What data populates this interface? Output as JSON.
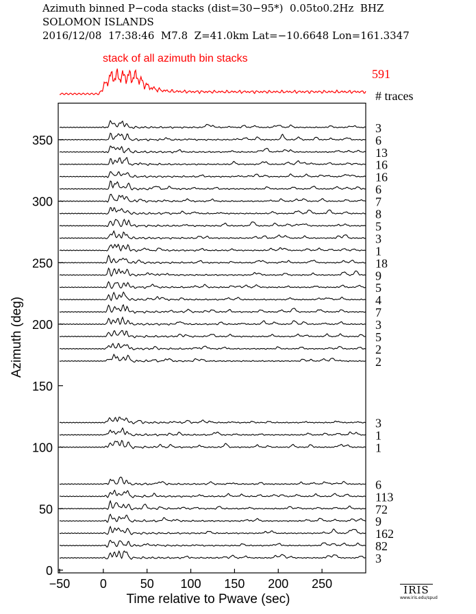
{
  "header": {
    "line1": "Azimuth binned P−coda stacks (dist=30−95*)  0.05to0.2Hz  BHZ",
    "line2": "SOLOMON ISLANDS",
    "line3": "2016/12/08  17:38:46  M7.8  Z=41.0km Lat=−10.6648 Lon=161.3347"
  },
  "logo": {
    "mark": "IRIS",
    "url": "www.iris.edu/spud"
  },
  "colors": {
    "trace": "#000000",
    "stack": "#ff0000",
    "axis": "#000000"
  },
  "chart_data": {
    "type": "line",
    "xlabel": "Time relative to Pwave (sec)",
    "ylabel": "Azimuth (deg)",
    "xlim": [
      -50,
      300
    ],
    "ylim": [
      0,
      380
    ],
    "xticks": [
      -50,
      0,
      50,
      100,
      150,
      200,
      250
    ],
    "yticks": [
      0,
      50,
      100,
      150,
      200,
      250,
      300,
      350
    ],
    "grid": false,
    "stack": {
      "label": "stack of all azimuth bin stacks",
      "count": "591"
    },
    "count_header": "# traces",
    "series": [
      {
        "azimuth": 360,
        "count": 3
      },
      {
        "azimuth": 350,
        "count": 6
      },
      {
        "azimuth": 340,
        "count": 13
      },
      {
        "azimuth": 330,
        "count": 16
      },
      {
        "azimuth": 320,
        "count": 16
      },
      {
        "azimuth": 310,
        "count": 6
      },
      {
        "azimuth": 300,
        "count": 7
      },
      {
        "azimuth": 290,
        "count": 8
      },
      {
        "azimuth": 280,
        "count": 5
      },
      {
        "azimuth": 270,
        "count": 3
      },
      {
        "azimuth": 260,
        "count": 1
      },
      {
        "azimuth": 250,
        "count": 18
      },
      {
        "azimuth": 240,
        "count": 9
      },
      {
        "azimuth": 230,
        "count": 5
      },
      {
        "azimuth": 220,
        "count": 4
      },
      {
        "azimuth": 210,
        "count": 7
      },
      {
        "azimuth": 200,
        "count": 3
      },
      {
        "azimuth": 190,
        "count": 5
      },
      {
        "azimuth": 180,
        "count": 2
      },
      {
        "azimuth": 170,
        "count": 2
      },
      {
        "azimuth": 120,
        "count": 3
      },
      {
        "azimuth": 110,
        "count": 1
      },
      {
        "azimuth": 100,
        "count": 1
      },
      {
        "azimuth": 70,
        "count": 6
      },
      {
        "azimuth": 60,
        "count": 113
      },
      {
        "azimuth": 50,
        "count": 72
      },
      {
        "azimuth": 40,
        "count": 9
      },
      {
        "azimuth": 30,
        "count": 162
      },
      {
        "azimuth": 20,
        "count": 82
      },
      {
        "azimuth": 10,
        "count": 3
      }
    ]
  }
}
